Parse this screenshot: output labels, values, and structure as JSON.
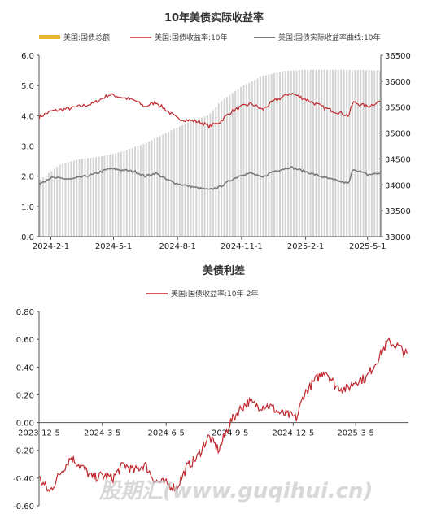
{
  "watermark": "股期汇(www.guqihui.cn)",
  "chart_data": [
    {
      "type": "bar+line",
      "title": "10年美债实际收益率",
      "legend": [
        "美国:国债总额",
        "美国:国债收益率:10年",
        "美国:国债实际收益率曲线:10年"
      ],
      "legend_placement": "top",
      "x_ticks": [
        "2024-2-1",
        "2024-5-1",
        "2024-8-1",
        "2024-11-1",
        "2025-2-1",
        "2025-5-1"
      ],
      "x_range": [
        "2024-01-15",
        "2025-05-20"
      ],
      "y_left_ticks": [
        "0.0",
        "1.0",
        "2.0",
        "3.0",
        "4.0",
        "5.0",
        "6.0"
      ],
      "y_left_range": [
        0,
        6
      ],
      "y_right_ticks": [
        "33000",
        "33500",
        "34000",
        "34500",
        "35000",
        "35500",
        "36000",
        "36500"
      ],
      "y_right_range": [
        33000,
        36500
      ],
      "grid": false,
      "colors": {
        "debt": "#d4d4d4",
        "debt_legend": "#e8b526",
        "nominal": "#c0272d",
        "real": "#7a7a7a"
      },
      "series": [
        {
          "name": "美国:国债总额",
          "axis": "right",
          "points": [
            [
              "2024-01-15",
              34080
            ],
            [
              "2024-02-15",
              34400
            ],
            [
              "2024-03-15",
              34500
            ],
            [
              "2024-04-15",
              34550
            ],
            [
              "2024-05-15",
              34650
            ],
            [
              "2024-06-15",
              34800
            ],
            [
              "2024-07-15",
              35000
            ],
            [
              "2024-08-15",
              35200
            ],
            [
              "2024-09-15",
              35350
            ],
            [
              "2024-10-01",
              35600
            ],
            [
              "2024-11-01",
              35900
            ],
            [
              "2024-12-01",
              36100
            ],
            [
              "2025-01-01",
              36200
            ],
            [
              "2025-02-01",
              36220
            ],
            [
              "2025-03-01",
              36220
            ],
            [
              "2025-04-01",
              36220
            ],
            [
              "2025-05-20",
              36210
            ]
          ]
        },
        {
          "name": "美国:国债收益率:10年",
          "axis": "left",
          "points": [
            [
              "2024-01-15",
              3.95
            ],
            [
              "2024-02-01",
              4.15
            ],
            [
              "2024-03-01",
              4.25
            ],
            [
              "2024-04-01",
              4.4
            ],
            [
              "2024-04-25",
              4.7
            ],
            [
              "2024-05-15",
              4.6
            ],
            [
              "2024-06-01",
              4.5
            ],
            [
              "2024-06-15",
              4.3
            ],
            [
              "2024-07-01",
              4.45
            ],
            [
              "2024-07-15",
              4.2
            ],
            [
              "2024-08-01",
              3.9
            ],
            [
              "2024-09-01",
              3.8
            ],
            [
              "2024-09-16",
              3.65
            ],
            [
              "2024-10-01",
              3.8
            ],
            [
              "2024-10-15",
              4.1
            ],
            [
              "2024-11-01",
              4.3
            ],
            [
              "2024-11-15",
              4.4
            ],
            [
              "2024-12-01",
              4.2
            ],
            [
              "2024-12-15",
              4.45
            ],
            [
              "2025-01-10",
              4.75
            ],
            [
              "2025-02-01",
              4.55
            ],
            [
              "2025-03-01",
              4.25
            ],
            [
              "2025-04-04",
              4.0
            ],
            [
              "2025-04-10",
              4.45
            ],
            [
              "2025-05-01",
              4.3
            ],
            [
              "2025-05-20",
              4.5
            ]
          ]
        },
        {
          "name": "美国:国债实际收益率曲线:10年",
          "axis": "left",
          "points": [
            [
              "2024-01-15",
              1.75
            ],
            [
              "2024-02-01",
              1.95
            ],
            [
              "2024-03-01",
              1.9
            ],
            [
              "2024-04-01",
              2.05
            ],
            [
              "2024-04-25",
              2.25
            ],
            [
              "2024-05-15",
              2.2
            ],
            [
              "2024-06-01",
              2.15
            ],
            [
              "2024-06-15",
              2.0
            ],
            [
              "2024-07-01",
              2.1
            ],
            [
              "2024-07-15",
              1.9
            ],
            [
              "2024-08-01",
              1.75
            ],
            [
              "2024-09-01",
              1.6
            ],
            [
              "2024-09-16",
              1.55
            ],
            [
              "2024-10-01",
              1.65
            ],
            [
              "2024-10-15",
              1.85
            ],
            [
              "2024-11-01",
              2.05
            ],
            [
              "2024-11-15",
              2.1
            ],
            [
              "2024-12-01",
              1.95
            ],
            [
              "2024-12-15",
              2.15
            ],
            [
              "2025-01-10",
              2.3
            ],
            [
              "2025-02-01",
              2.15
            ],
            [
              "2025-03-01",
              1.95
            ],
            [
              "2025-04-04",
              1.75
            ],
            [
              "2025-04-10",
              2.25
            ],
            [
              "2025-05-01",
              2.05
            ],
            [
              "2025-05-20",
              2.1
            ]
          ]
        }
      ]
    },
    {
      "type": "line",
      "title": "美债利差",
      "legend": [
        "美国:国债收益率:10年-2年"
      ],
      "legend_placement": "top",
      "x_ticks": [
        "2023-12-5",
        "2024-3-5",
        "2024-6-5",
        "2024-9-5",
        "2024-12-5",
        "2025-3-5"
      ],
      "x_range": [
        "2023-12-05",
        "2025-05-20"
      ],
      "y_ticks": [
        "-0.60",
        "-0.40",
        "-0.20",
        "0.00",
        "0.20",
        "0.40",
        "0.60",
        "0.80"
      ],
      "y_range": [
        -0.6,
        0.8
      ],
      "grid": false,
      "colors": {
        "line": "#c0272d"
      },
      "series": [
        {
          "name": "美国:国债收益率:10年-2年",
          "points": [
            [
              "2023-12-05",
              -0.4
            ],
            [
              "2023-12-20",
              -0.5
            ],
            [
              "2024-01-05",
              -0.36
            ],
            [
              "2024-01-20",
              -0.25
            ],
            [
              "2024-02-05",
              -0.32
            ],
            [
              "2024-02-20",
              -0.4
            ],
            [
              "2024-03-05",
              -0.38
            ],
            [
              "2024-03-20",
              -0.4
            ],
            [
              "2024-04-05",
              -0.3
            ],
            [
              "2024-04-20",
              -0.35
            ],
            [
              "2024-05-05",
              -0.3
            ],
            [
              "2024-05-20",
              -0.42
            ],
            [
              "2024-06-05",
              -0.44
            ],
            [
              "2024-06-20",
              -0.47
            ],
            [
              "2024-07-05",
              -0.32
            ],
            [
              "2024-07-20",
              -0.25
            ],
            [
              "2024-08-05",
              -0.1
            ],
            [
              "2024-08-20",
              -0.2
            ],
            [
              "2024-09-05",
              0.0
            ],
            [
              "2024-09-20",
              0.1
            ],
            [
              "2024-10-01",
              0.15
            ],
            [
              "2024-10-15",
              0.12
            ],
            [
              "2024-11-01",
              0.12
            ],
            [
              "2024-11-15",
              0.07
            ],
            [
              "2024-12-01",
              0.05
            ],
            [
              "2024-12-10",
              0.03
            ],
            [
              "2024-12-20",
              0.2
            ],
            [
              "2025-01-05",
              0.3
            ],
            [
              "2025-01-20",
              0.38
            ],
            [
              "2025-02-05",
              0.26
            ],
            [
              "2025-02-20",
              0.24
            ],
            [
              "2025-03-05",
              0.3
            ],
            [
              "2025-03-20",
              0.32
            ],
            [
              "2025-04-05",
              0.45
            ],
            [
              "2025-04-20",
              0.58
            ],
            [
              "2025-05-05",
              0.55
            ],
            [
              "2025-05-20",
              0.48
            ]
          ]
        }
      ]
    }
  ]
}
